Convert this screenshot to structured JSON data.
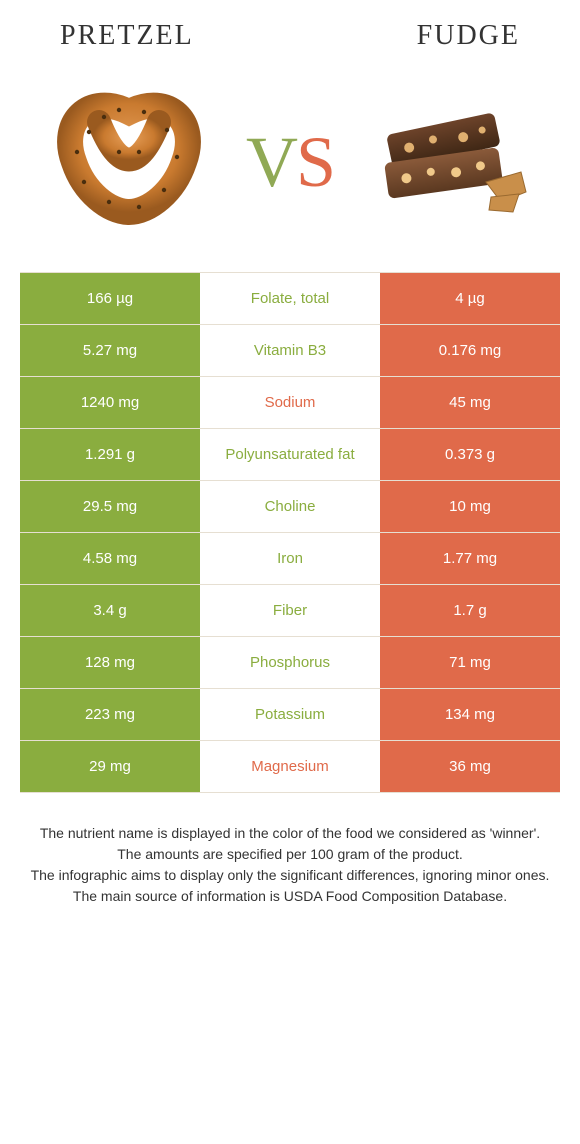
{
  "colors": {
    "left": "#8aad3f",
    "right": "#e06a4a",
    "mid_bg": "#ffffff",
    "row_border": "#e6dfd2"
  },
  "titles": {
    "left": "PRETZEL",
    "right": "FUDGE"
  },
  "vs": {
    "v": "V",
    "s": "S"
  },
  "rows": [
    {
      "left": "166 µg",
      "label": "Folate, total",
      "right": "4 µg",
      "winner": "left"
    },
    {
      "left": "5.27 mg",
      "label": "Vitamin B3",
      "right": "0.176 mg",
      "winner": "left"
    },
    {
      "left": "1240 mg",
      "label": "Sodium",
      "right": "45 mg",
      "winner": "right"
    },
    {
      "left": "1.291 g",
      "label": "Polyunsaturated fat",
      "right": "0.373 g",
      "winner": "left"
    },
    {
      "left": "29.5 mg",
      "label": "Choline",
      "right": "10 mg",
      "winner": "left"
    },
    {
      "left": "4.58 mg",
      "label": "Iron",
      "right": "1.77 mg",
      "winner": "left"
    },
    {
      "left": "3.4 g",
      "label": "Fiber",
      "right": "1.7 g",
      "winner": "left"
    },
    {
      "left": "128 mg",
      "label": "Phosphorus",
      "right": "71 mg",
      "winner": "left"
    },
    {
      "left": "223 mg",
      "label": "Potassium",
      "right": "134 mg",
      "winner": "left"
    },
    {
      "left": "29 mg",
      "label": "Magnesium",
      "right": "36 mg",
      "winner": "right"
    }
  ],
  "footnotes": [
    "The nutrient name is displayed in the color of the food we considered as 'winner'.",
    "The amounts are specified per 100 gram of the product.",
    "The infographic aims to display only the significant differences, ignoring minor ones.",
    "The main source of information is USDA Food Composition Database."
  ]
}
